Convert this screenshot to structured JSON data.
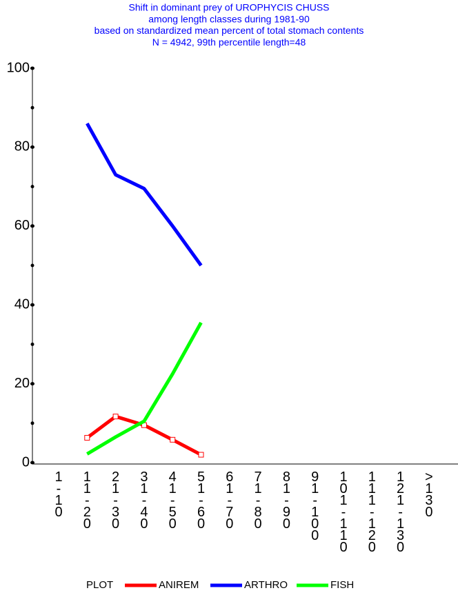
{
  "chart_data": {
    "type": "line",
    "title": [
      "Shift in dominant prey of UROPHYCIS CHUSS",
      "among length classes during 1981-90",
      "based on standardized mean percent of  total stomach contents",
      "N = 4942, 99th percentile  length=48"
    ],
    "categories": [
      "1-10",
      "11-20",
      "21-30",
      "31-40",
      "41-50",
      "51-60",
      "61-70",
      "71-80",
      "81-90",
      "91-100",
      "101-110",
      "111-120",
      "121-130",
      ">130"
    ],
    "series": [
      {
        "name": "ANIREM",
        "color": "#ff0000",
        "markers": true,
        "values": [
          null,
          6.3,
          11.7,
          9.5,
          5.8,
          2.0,
          null,
          null,
          null,
          null,
          null,
          null,
          null,
          null
        ]
      },
      {
        "name": "ARTHRO",
        "color": "#0000ff",
        "markers": false,
        "values": [
          null,
          86,
          73,
          69.5,
          60,
          50,
          null,
          null,
          null,
          null,
          null,
          null,
          null,
          null
        ]
      },
      {
        "name": "FISH",
        "color": "#00ff00",
        "markers": false,
        "values": [
          null,
          2.2,
          6.5,
          10.5,
          22.5,
          35.5,
          null,
          null,
          null,
          null,
          null,
          null,
          null,
          null
        ]
      }
    ],
    "legend_title": "PLOT",
    "ylim": [
      0,
      100
    ],
    "yticks": [
      0,
      20,
      40,
      60,
      80,
      100
    ],
    "minor_yticks": [
      10,
      30,
      50,
      70,
      90
    ]
  }
}
